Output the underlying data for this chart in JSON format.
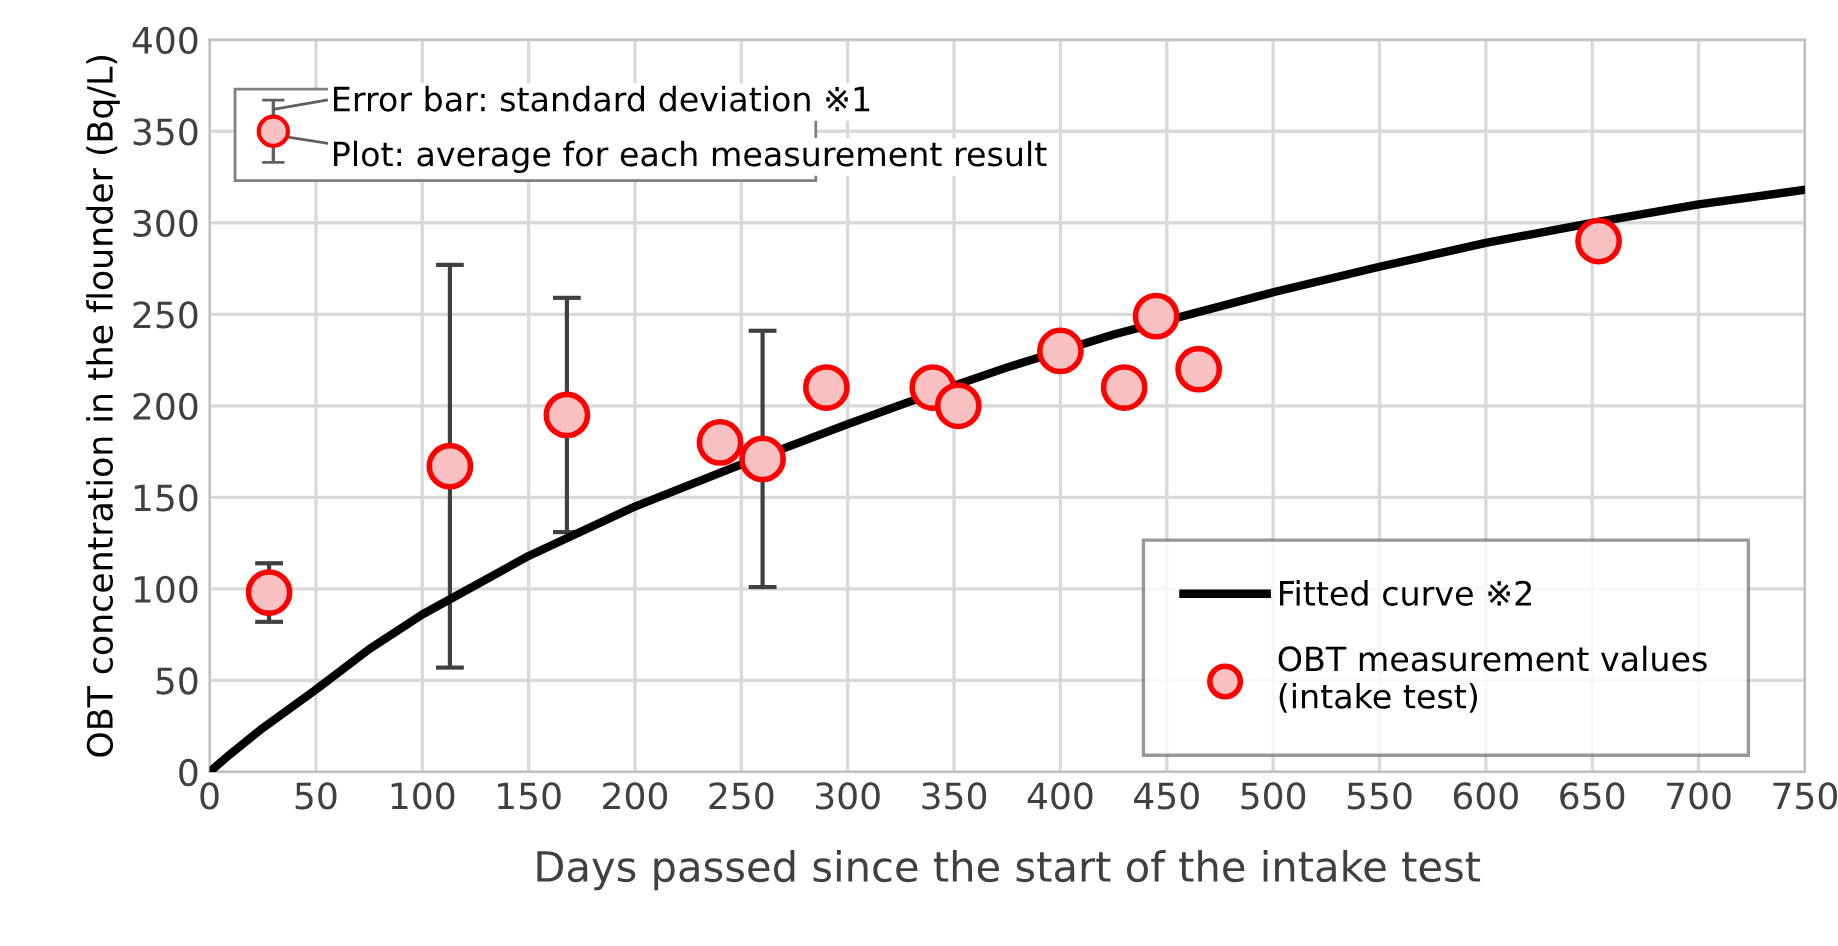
{
  "chart_data": {
    "type": "scatter",
    "xlabel": "Days passed since the start of the intake test",
    "ylabel": "OBT concentration in the flounder (Bq/L)",
    "xlim": [
      0,
      750
    ],
    "xticks": [
      0,
      50,
      100,
      150,
      200,
      250,
      300,
      350,
      400,
      450,
      500,
      550,
      600,
      650,
      700,
      750
    ],
    "ylim": [
      0,
      400
    ],
    "yticks": [
      0,
      50,
      100,
      150,
      200,
      250,
      300,
      350,
      400
    ],
    "grid": true,
    "legend": "bottom right",
    "annotations": [
      "Error bar: standard deviation ※1",
      "Plot: average for each measurement result"
    ],
    "series": [
      {
        "name": "Fitted curve ※2",
        "type": "line",
        "color": "#000000",
        "marker": "none",
        "line_style": "solid",
        "x": [
          0,
          10,
          25,
          50,
          75,
          100,
          150,
          200,
          250,
          300,
          350,
          375,
          425,
          500,
          550,
          600,
          650,
          700,
          750
        ],
        "values": [
          0,
          10,
          24,
          45,
          67,
          86,
          118,
          145,
          168,
          190,
          211,
          221,
          239,
          262,
          276,
          289,
          300,
          310,
          318
        ]
      },
      {
        "name": "OBT measurement values (intake test)",
        "color": "#ff0000",
        "marker": "circle",
        "x": [
          28,
          113,
          168,
          240,
          260,
          290,
          340,
          352,
          400,
          430,
          445,
          465,
          653
        ],
        "values": [
          98,
          167,
          195,
          180,
          171,
          210,
          210,
          200,
          230,
          210,
          249,
          220,
          290
        ],
        "errors": [
          16,
          110,
          64,
          null,
          70,
          null,
          null,
          null,
          null,
          null,
          null,
          null,
          null
        ]
      }
    ]
  }
}
